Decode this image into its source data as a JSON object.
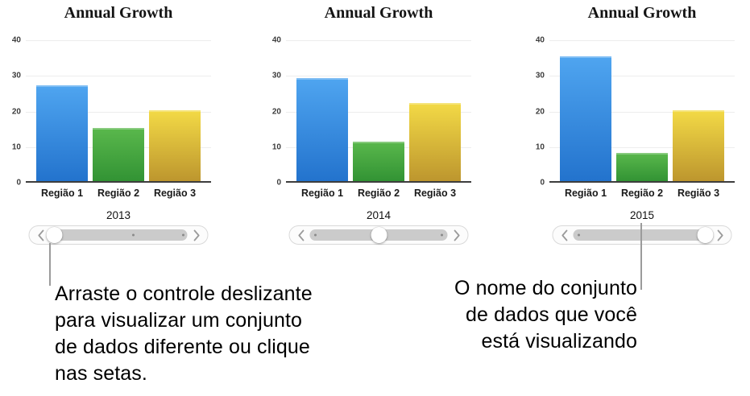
{
  "chart_data": [
    {
      "type": "bar",
      "title": "Annual Growth",
      "dataset_label": "2013",
      "categories": [
        "Região 1",
        "Região 2",
        "Região 3"
      ],
      "values": [
        27,
        15,
        20
      ],
      "xlabel": "",
      "ylabel": "",
      "ylim": [
        0,
        40
      ],
      "yticks": [
        0,
        10,
        20,
        30,
        40
      ],
      "grid": true,
      "legend": false
    },
    {
      "type": "bar",
      "title": "Annual Growth",
      "dataset_label": "2014",
      "categories": [
        "Região 1",
        "Região 2",
        "Região 3"
      ],
      "values": [
        29,
        11,
        22
      ],
      "xlabel": "",
      "ylabel": "",
      "ylim": [
        0,
        40
      ],
      "yticks": [
        0,
        10,
        20,
        30,
        40
      ],
      "grid": true,
      "legend": false
    },
    {
      "type": "bar",
      "title": "Annual Growth",
      "dataset_label": "2015",
      "categories": [
        "Região 1",
        "Região 2",
        "Região 3"
      ],
      "values": [
        35,
        8,
        20
      ],
      "xlabel": "",
      "ylabel": "",
      "ylim": [
        0,
        40
      ],
      "yticks": [
        0,
        10,
        20,
        30,
        40
      ],
      "grid": true,
      "legend": false
    }
  ],
  "series_colors": [
    {
      "name": "blue",
      "top": "#4fa5f0",
      "bottom": "#2373cd"
    },
    {
      "name": "green",
      "top": "#5ab84c",
      "bottom": "#329334"
    },
    {
      "name": "yellow",
      "top": "#f3da46",
      "bottom": "#bd962e"
    }
  ],
  "sliders": [
    {
      "thumb": 0.035,
      "dots": [
        0.61,
        0.97
      ]
    },
    {
      "thumb": 0.5,
      "dots": [
        0.04,
        0.96
      ]
    },
    {
      "thumb": 0.96,
      "dots": [
        0.04
      ]
    }
  ],
  "callouts": {
    "left": "Arraste o controle deslizante\npara visualizar um conjunto\nde dados diferente ou clique\nnas setas.",
    "right": "O nome do conjunto\nde dados que você\nestá visualizando"
  },
  "colors": {
    "baseline": "#3d3d3d",
    "gridline": "#ededed",
    "slider_track": "#cbcbcb",
    "callout_line": "#9b9b9b"
  }
}
